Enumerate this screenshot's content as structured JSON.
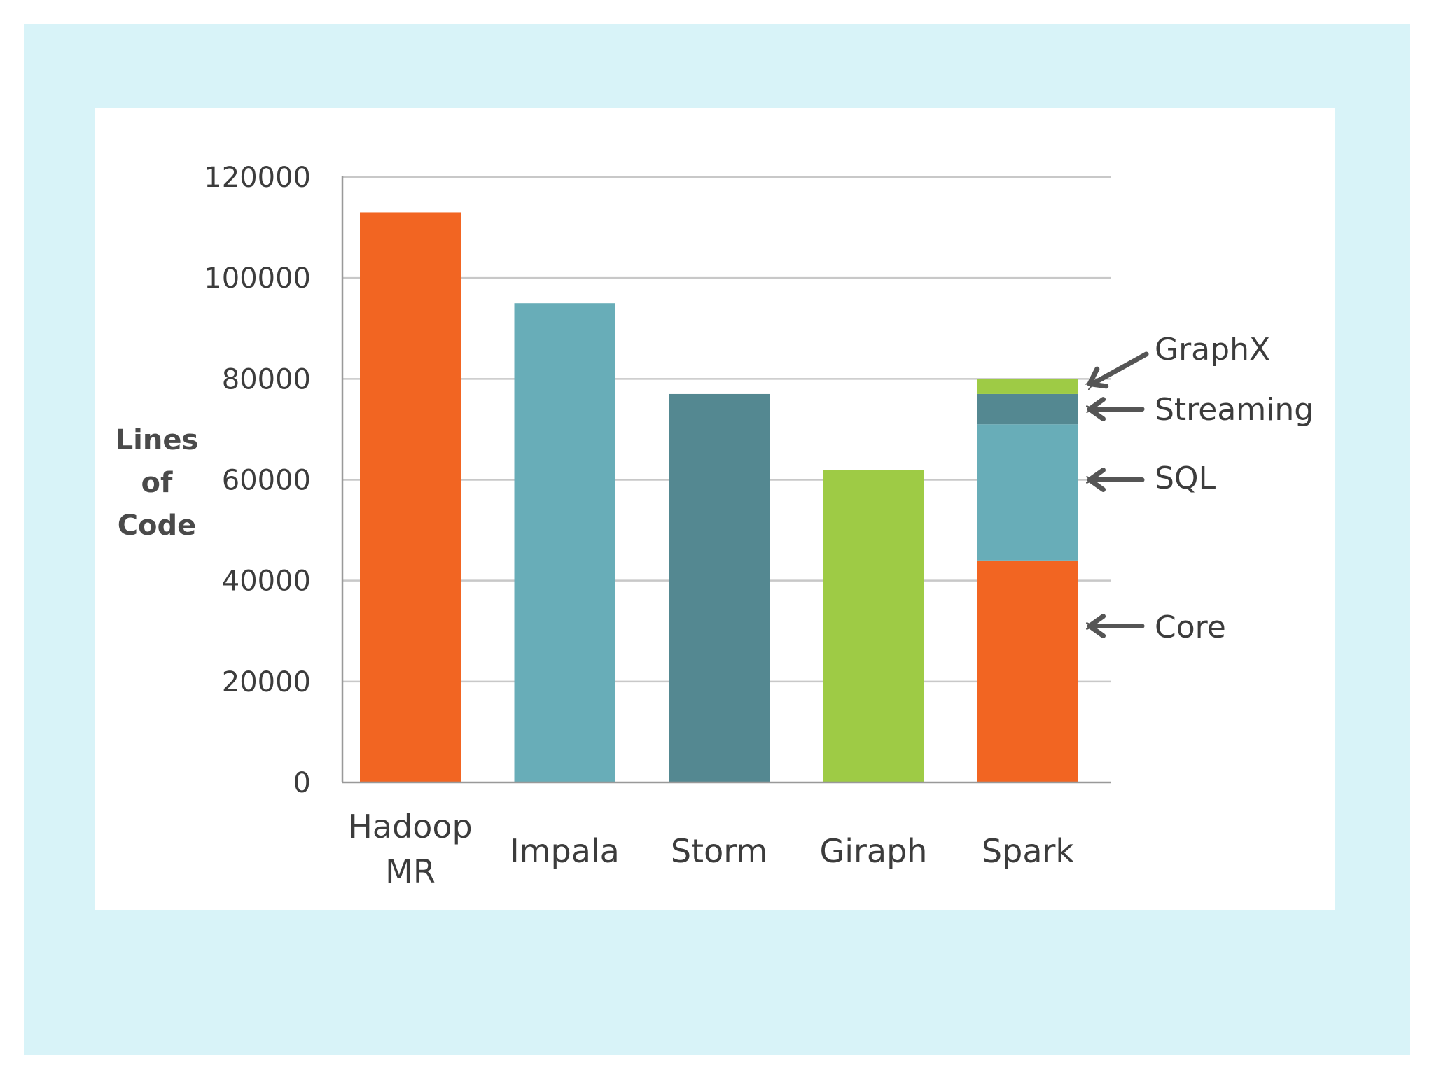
{
  "chart_data": {
    "type": "bar",
    "title": "",
    "xlabel": "",
    "ylabel_lines": [
      "Lines",
      "of",
      "Code"
    ],
    "ylim": [
      0,
      120000
    ],
    "yticks": [
      0,
      20000,
      40000,
      60000,
      80000,
      100000,
      120000
    ],
    "ytick_labels": [
      "0",
      "20000",
      "40000",
      "60000",
      "80000",
      "100000",
      "120000"
    ],
    "grid": true,
    "categories": [
      {
        "lines": [
          "Hadoop",
          "MR"
        ]
      },
      {
        "lines": [
          "Impala"
        ]
      },
      {
        "lines": [
          "Storm"
        ]
      },
      {
        "lines": [
          "Giraph"
        ]
      },
      {
        "lines": [
          "Spark"
        ]
      }
    ],
    "bars": [
      {
        "segments": [
          {
            "name": "Hadoop MR",
            "value": 113000,
            "color": "#f26522"
          }
        ]
      },
      {
        "segments": [
          {
            "name": "Impala",
            "value": 95000,
            "color": "#68adb8"
          }
        ]
      },
      {
        "segments": [
          {
            "name": "Storm",
            "value": 77000,
            "color": "#548891"
          }
        ]
      },
      {
        "segments": [
          {
            "name": "Giraph",
            "value": 62000,
            "color": "#9ecb45"
          }
        ]
      },
      {
        "segments": [
          {
            "name": "Core",
            "value": 44000,
            "color": "#f26522"
          },
          {
            "name": "SQL",
            "value": 27000,
            "color": "#68adb8"
          },
          {
            "name": "Streaming",
            "value": 6000,
            "color": "#548891"
          },
          {
            "name": "GraphX",
            "value": 3000,
            "color": "#9ecb45"
          }
        ]
      }
    ],
    "annotations": [
      {
        "label": "GraphX",
        "target_value": 79000
      },
      {
        "label": "Streaming",
        "target_value": 74000
      },
      {
        "label": "SQL",
        "target_value": 60000
      },
      {
        "label": "Core",
        "target_value": 31000
      }
    ]
  }
}
